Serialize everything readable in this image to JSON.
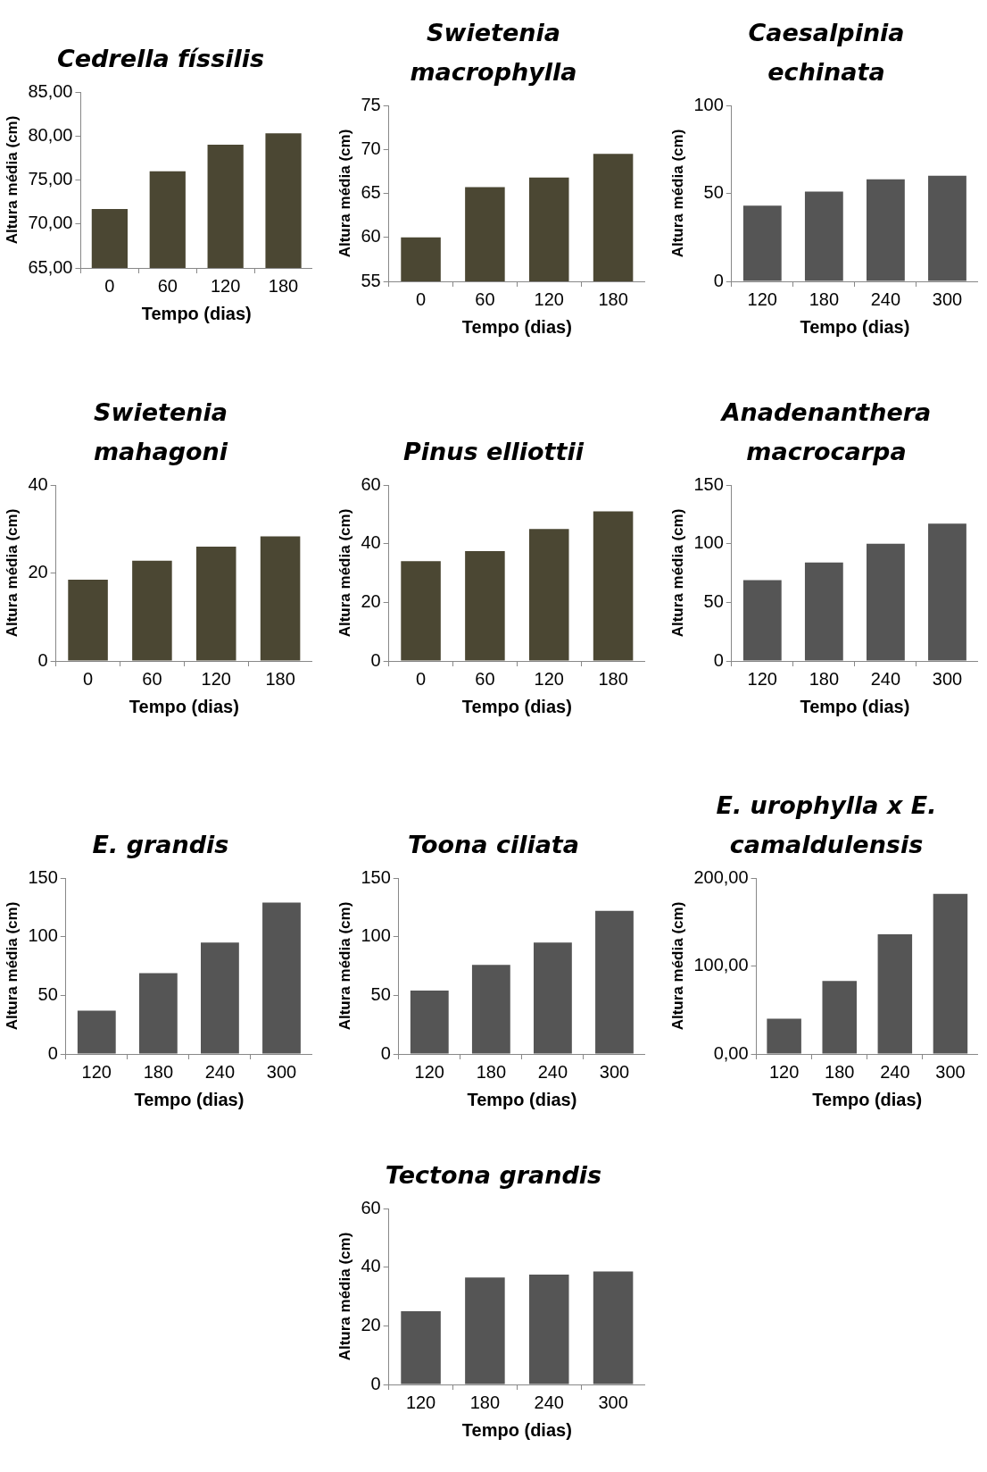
{
  "chart_data": [
    {
      "type": "bar",
      "title": "Cedrella físsilis",
      "xlabel": "Tempo (dias)",
      "ylabel": "Altura média (cm)",
      "categories": [
        "0",
        "60",
        "120",
        "180"
      ],
      "values": [
        71.7,
        76.0,
        79.0,
        80.3
      ],
      "color": "#4b4733",
      "ylim": [
        65,
        85
      ],
      "yticks": [
        {
          "value": 65,
          "label": "65,00"
        },
        {
          "value": 70,
          "label": "70,00"
        },
        {
          "value": 75,
          "label": "75,00"
        },
        {
          "value": 80,
          "label": "80,00"
        },
        {
          "value": 85,
          "label": "85,00"
        }
      ],
      "grid": false,
      "legend": false
    },
    {
      "type": "bar",
      "title": "Swietenia macrophylla",
      "xlabel": "Tempo (dias)",
      "ylabel": "Altura média (cm)",
      "categories": [
        "0",
        "60",
        "120",
        "180"
      ],
      "values": [
        60,
        65.7,
        66.8,
        69.5
      ],
      "color": "#4b4733",
      "ylim": [
        55,
        75
      ],
      "yticks": [
        55,
        60,
        65,
        70,
        75
      ],
      "grid": false,
      "legend": false
    },
    {
      "type": "bar",
      "title": "Caesalpinia echinata",
      "xlabel": "Tempo (dias)",
      "ylabel": "Altura média (cm)",
      "categories": [
        "120",
        "180",
        "240",
        "300"
      ],
      "values": [
        43,
        51,
        58,
        60
      ],
      "color": "#555555",
      "ylim": [
        0,
        100
      ],
      "yticks": [
        0,
        50,
        100
      ],
      "grid": false,
      "legend": false
    },
    {
      "type": "bar",
      "title": "Swietenia mahagoni",
      "xlabel": "Tempo (dias)",
      "ylabel": "Altura média (cm)",
      "categories": [
        "0",
        "60",
        "120",
        "180"
      ],
      "values": [
        18.5,
        22.8,
        26,
        28.3
      ],
      "color": "#4b4733",
      "ylim": [
        0,
        40
      ],
      "yticks": [
        0,
        20,
        40
      ],
      "grid": false,
      "legend": false
    },
    {
      "type": "bar",
      "title": "Pinus elliottii",
      "xlabel": "Tempo (dias)",
      "ylabel": "Altura média (cm)",
      "categories": [
        "0",
        "60",
        "120",
        "180"
      ],
      "values": [
        34,
        37.5,
        45,
        51
      ],
      "color": "#4b4733",
      "ylim": [
        0,
        60
      ],
      "yticks": [
        0,
        20,
        40,
        60
      ],
      "grid": false,
      "legend": false
    },
    {
      "type": "bar",
      "title": "Anadenanthera macrocarpa",
      "xlabel": "Tempo (dias)",
      "ylabel": "Altura média (cm)",
      "categories": [
        "120",
        "180",
        "240",
        "300"
      ],
      "values": [
        69,
        84,
        100,
        117
      ],
      "color": "#555555",
      "ylim": [
        0,
        150
      ],
      "yticks": [
        0,
        50,
        100,
        150
      ],
      "grid": false,
      "legend": false
    },
    {
      "type": "bar",
      "title": "E. grandis",
      "xlabel": "Tempo (dias)",
      "ylabel": "Altura média (cm)",
      "categories": [
        "120",
        "180",
        "240",
        "300"
      ],
      "values": [
        37,
        69,
        95,
        129
      ],
      "color": "#555555",
      "ylim": [
        0,
        150
      ],
      "yticks": [
        0,
        50,
        100,
        150
      ],
      "grid": false,
      "legend": false
    },
    {
      "type": "bar",
      "title": "Toona ciliata",
      "xlabel": "Tempo (dias)",
      "ylabel": "Altura média (cm)",
      "categories": [
        "120",
        "180",
        "240",
        "300"
      ],
      "values": [
        54,
        76,
        95,
        122
      ],
      "color": "#555555",
      "ylim": [
        0,
        150
      ],
      "yticks": [
        0,
        50,
        100,
        150
      ],
      "grid": false,
      "legend": false
    },
    {
      "type": "bar",
      "title": "E. urophylla x E. camaldulensis",
      "xlabel": "Tempo (dias)",
      "ylabel": "Altura média (cm)",
      "categories": [
        "120",
        "180",
        "240",
        "300"
      ],
      "values": [
        40,
        83,
        136,
        182
      ],
      "color": "#555555",
      "ylim": [
        0,
        200
      ],
      "yticks": [
        {
          "value": 0,
          "label": "0,00"
        },
        {
          "value": 100,
          "label": "100,00"
        },
        {
          "value": 200,
          "label": "200,00"
        }
      ],
      "grid": false,
      "legend": false
    },
    {
      "type": "bar",
      "title": "Tectona grandis",
      "xlabel": "Tempo (dias)",
      "ylabel": "Altura média (cm)",
      "categories": [
        "120",
        "180",
        "240",
        "300"
      ],
      "values": [
        25,
        36.5,
        37.5,
        38.5
      ],
      "color": "#555555",
      "ylim": [
        0,
        60
      ],
      "yticks": [
        0,
        20,
        40,
        60
      ],
      "grid": false,
      "legend": false
    }
  ]
}
